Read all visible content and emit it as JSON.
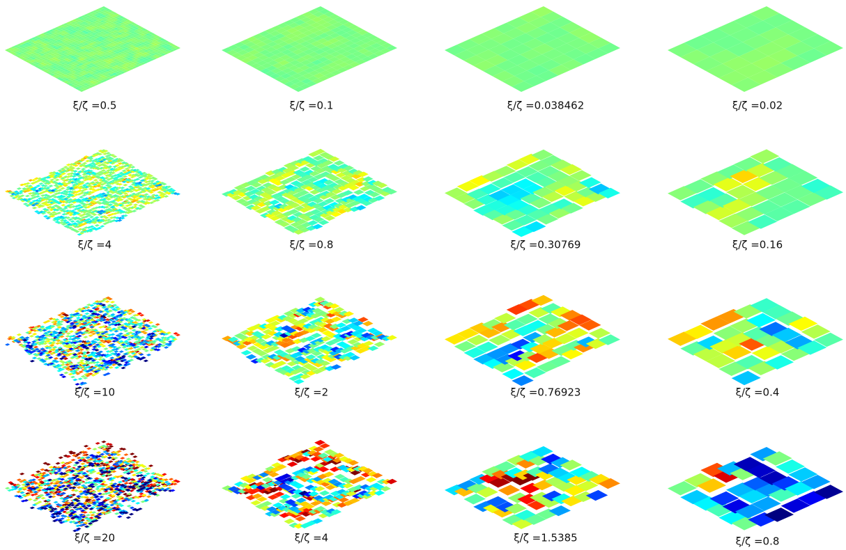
{
  "panels": [
    {
      "label": "ξ/ζ =0.5"
    },
    {
      "label": "ξ/ζ =0.1"
    },
    {
      "label": "ξ/ζ =0.038462"
    },
    {
      "label": "ξ/ζ =0.02"
    },
    {
      "label": "ξ/ζ =4"
    },
    {
      "label": "ξ/ζ =0.8"
    },
    {
      "label": "ξ/ζ =0.30769"
    },
    {
      "label": "ξ/ζ =0.16"
    },
    {
      "label": "ξ/ζ =10"
    },
    {
      "label": "ξ/ζ =2"
    },
    {
      "label": "ξ/ζ =0.76923"
    },
    {
      "label": "ξ/ζ =0.4"
    },
    {
      "label": "ξ/ζ =20"
    },
    {
      "label": "ξ/ζ =4"
    },
    {
      "label": "ξ/ζ =1.5385"
    },
    {
      "label": "ξ/ζ =0.8"
    }
  ]
}
